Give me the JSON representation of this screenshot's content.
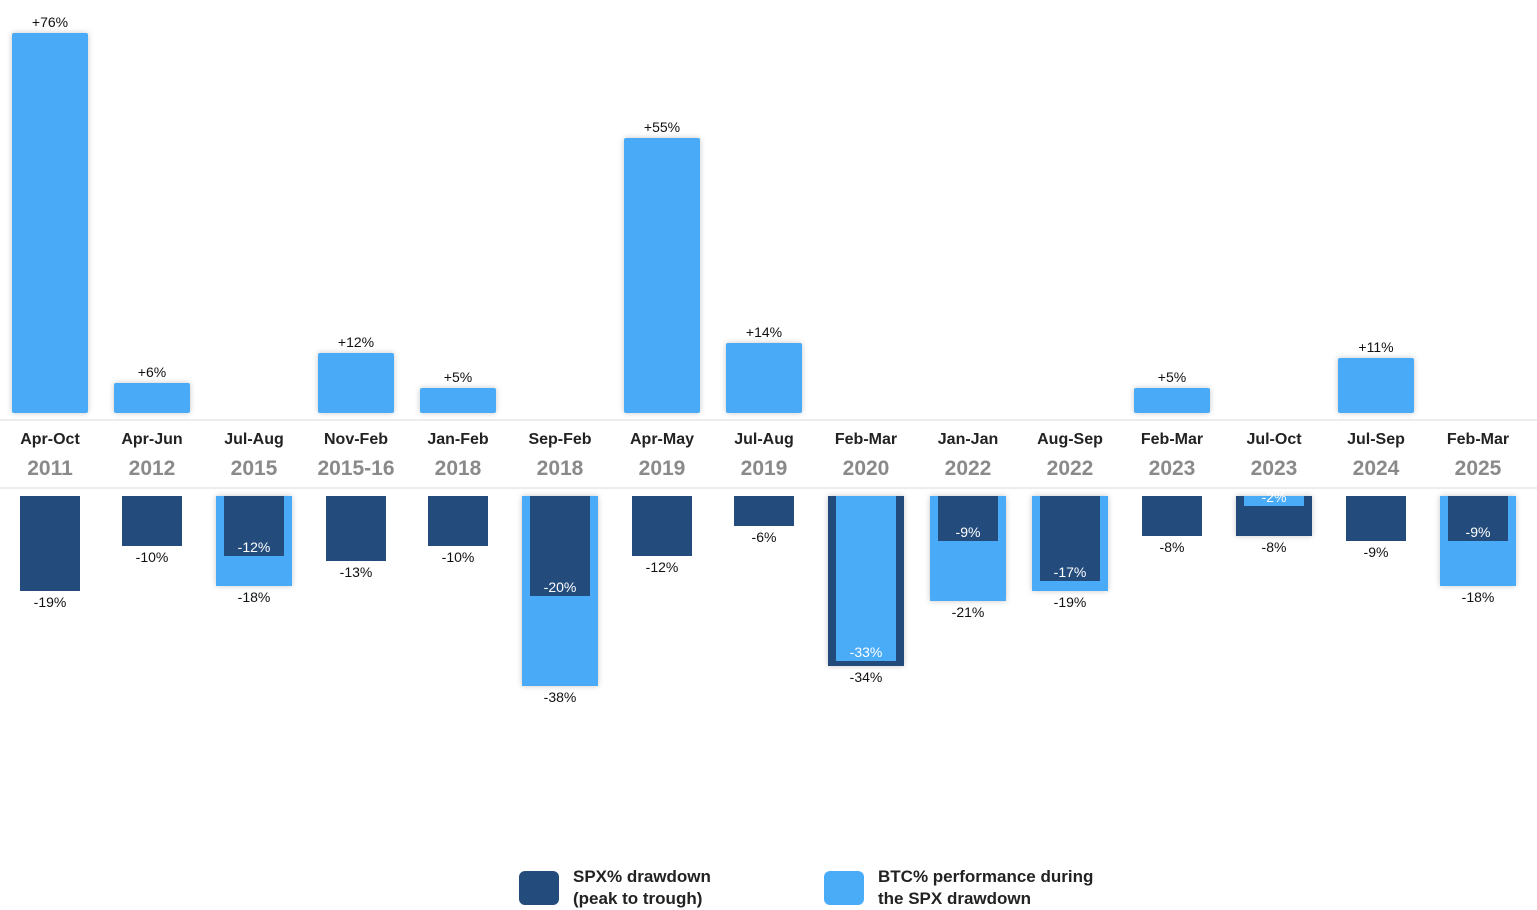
{
  "colors": {
    "spx": "#234c7c",
    "btc": "#4aabf7",
    "axis_band_border": "#e6e6e6"
  },
  "chart_data": {
    "type": "bar",
    "title": "",
    "xlabel": "",
    "ylabel": "",
    "categories": [
      {
        "period": "Apr-Oct",
        "year": "2011"
      },
      {
        "period": "Apr-Jun",
        "year": "2012"
      },
      {
        "period": "Jul-Aug",
        "year": "2015"
      },
      {
        "period": "Nov-Feb",
        "year": "2015-16"
      },
      {
        "period": "Jan-Feb",
        "year": "2018"
      },
      {
        "period": "Sep-Feb",
        "year": "2018"
      },
      {
        "period": "Apr-May",
        "year": "2019"
      },
      {
        "period": "Jul-Aug",
        "year": "2019"
      },
      {
        "period": "Feb-Mar",
        "year": "2020"
      },
      {
        "period": "Jan-Jan",
        "year": "2022"
      },
      {
        "period": "Aug-Sep",
        "year": "2022"
      },
      {
        "period": "Feb-Mar",
        "year": "2023"
      },
      {
        "period": "Jul-Oct",
        "year": "2023"
      },
      {
        "period": "Jul-Sep",
        "year": "2024"
      },
      {
        "period": "Feb-Mar",
        "year": "2025"
      }
    ],
    "series": [
      {
        "name": "SPX% drawdown (peak to trough)",
        "key": "spx",
        "values": [
          -19,
          -10,
          -12,
          -13,
          -10,
          -20,
          -12,
          -6,
          -34,
          -9,
          -17,
          -8,
          -8,
          -9,
          -9
        ],
        "labels": [
          "-19%",
          "-10%",
          "-12%",
          "-13%",
          "-10%",
          "-20%",
          "-12%",
          "-6%",
          "-34%",
          "-9%",
          "-17%",
          "-8%",
          "-8%",
          "-9%",
          "-9%"
        ]
      },
      {
        "name": "BTC% performance during the SPX drawdown",
        "key": "btc",
        "values": [
          76,
          6,
          -18,
          12,
          5,
          -38,
          55,
          14,
          -33,
          -21,
          -19,
          5,
          -2,
          11,
          -18
        ],
        "labels": [
          "+76%",
          "+6%",
          "-18%",
          "+12%",
          "+5%",
          "-38%",
          "+55%",
          "+14%",
          "-33%",
          "-21%",
          "-19%",
          "+5%",
          "-2%",
          "+11%",
          "-18%"
        ]
      }
    ],
    "legend_position": "bottom",
    "grid": false
  },
  "legend": {
    "spx_line1": "SPX% drawdown",
    "spx_line2": "(peak to trough)",
    "btc_line1": "BTC% performance during",
    "btc_line2": "the SPX drawdown"
  }
}
